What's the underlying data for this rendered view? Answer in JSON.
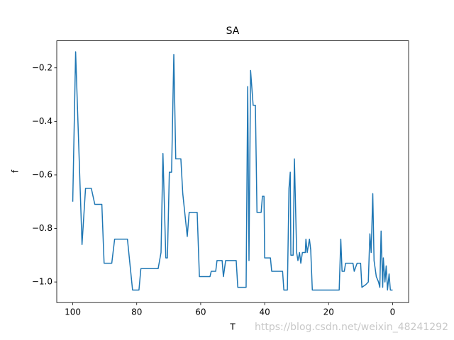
{
  "chart_data": {
    "type": "line",
    "title": "SA",
    "x_label": "T",
    "y_label": "f",
    "watermark": "https://blog.csdn.net/weixin_48241292",
    "x": [
      100,
      99.1,
      97.1,
      96,
      94.2,
      93.1,
      90.9,
      90.2,
      87.8,
      86.9,
      82.9,
      81.3,
      79.3,
      78.7,
      73.3,
      72.4,
      71.8,
      70.9,
      70.4,
      69.8,
      69.1,
      68.4,
      67.8,
      66.2,
      65.6,
      64.2,
      63.6,
      61.1,
      60.4,
      57.1,
      56.7,
      55.3,
      54.9,
      53.3,
      52.9,
      52.2,
      48.9,
      48.4,
      45.8,
      45.3,
      44.9,
      44.4,
      43.6,
      42.9,
      42.4,
      41.1,
      40.7,
      40.2,
      40,
      38.2,
      37.8,
      34.4,
      34,
      32.9,
      32.4,
      32,
      31.8,
      31.1,
      30.7,
      30,
      29.6,
      29.1,
      28.7,
      28.2,
      27.3,
      27.1,
      26.7,
      26,
      25.6,
      25.1,
      16.7,
      16.2,
      15.8,
      15.1,
      14.7,
      12.4,
      12,
      11.1,
      10,
      9.6,
      8.4,
      7.6,
      7.1,
      6.7,
      6.2,
      5.8,
      5.1,
      4.4,
      4.0,
      3.6,
      3.1,
      2.9,
      2.4,
      2.0,
      1.6,
      1.1,
      0.7,
      0
    ],
    "series": [
      {
        "color": "#1f77b4",
        "values": [
          -0.7,
          -0.14,
          -0.86,
          -0.65,
          -0.65,
          -0.71,
          -0.71,
          -0.93,
          -0.93,
          -0.84,
          -0.84,
          -1.03,
          -1.03,
          -0.95,
          -0.95,
          -0.89,
          -0.52,
          -0.91,
          -0.91,
          -0.59,
          -0.59,
          -0.15,
          -0.54,
          -0.54,
          -0.67,
          -0.83,
          -0.74,
          -0.74,
          -0.98,
          -0.98,
          -0.96,
          -0.96,
          -0.92,
          -0.92,
          -0.98,
          -0.92,
          -0.92,
          -1.02,
          -1.02,
          -0.27,
          -0.92,
          -0.21,
          -0.34,
          -0.34,
          -0.74,
          -0.74,
          -0.68,
          -0.68,
          -0.91,
          -0.91,
          -0.96,
          -0.96,
          -1.03,
          -1.03,
          -0.65,
          -0.59,
          -0.9,
          -0.9,
          -0.54,
          -0.89,
          -0.92,
          -0.89,
          -0.93,
          -0.89,
          -0.89,
          -0.84,
          -0.89,
          -0.84,
          -0.88,
          -1.03,
          -1.03,
          -0.84,
          -0.96,
          -0.96,
          -0.93,
          -0.93,
          -0.96,
          -0.93,
          -0.93,
          -1.02,
          -1.01,
          -1.0,
          -0.82,
          -0.89,
          -0.67,
          -0.92,
          -0.98,
          -1.0,
          -1.02,
          -0.81,
          -1.02,
          -0.91,
          -1.0,
          -0.94,
          -1.03,
          -0.97,
          -1.03,
          -1.03
        ]
      }
    ],
    "xlim": [
      105,
      -5
    ],
    "ylim": [
      -1.077,
      -0.099
    ],
    "xticks": [
      100,
      80,
      60,
      40,
      20,
      0
    ],
    "yticks": [
      {
        "value": -1.0,
        "label": "−1.0"
      },
      {
        "value": -0.8,
        "label": "−0.8"
      },
      {
        "value": -0.6,
        "label": "−0.6"
      },
      {
        "value": -0.4,
        "label": "−0.4"
      },
      {
        "value": -0.2,
        "label": "−0.2"
      }
    ]
  }
}
